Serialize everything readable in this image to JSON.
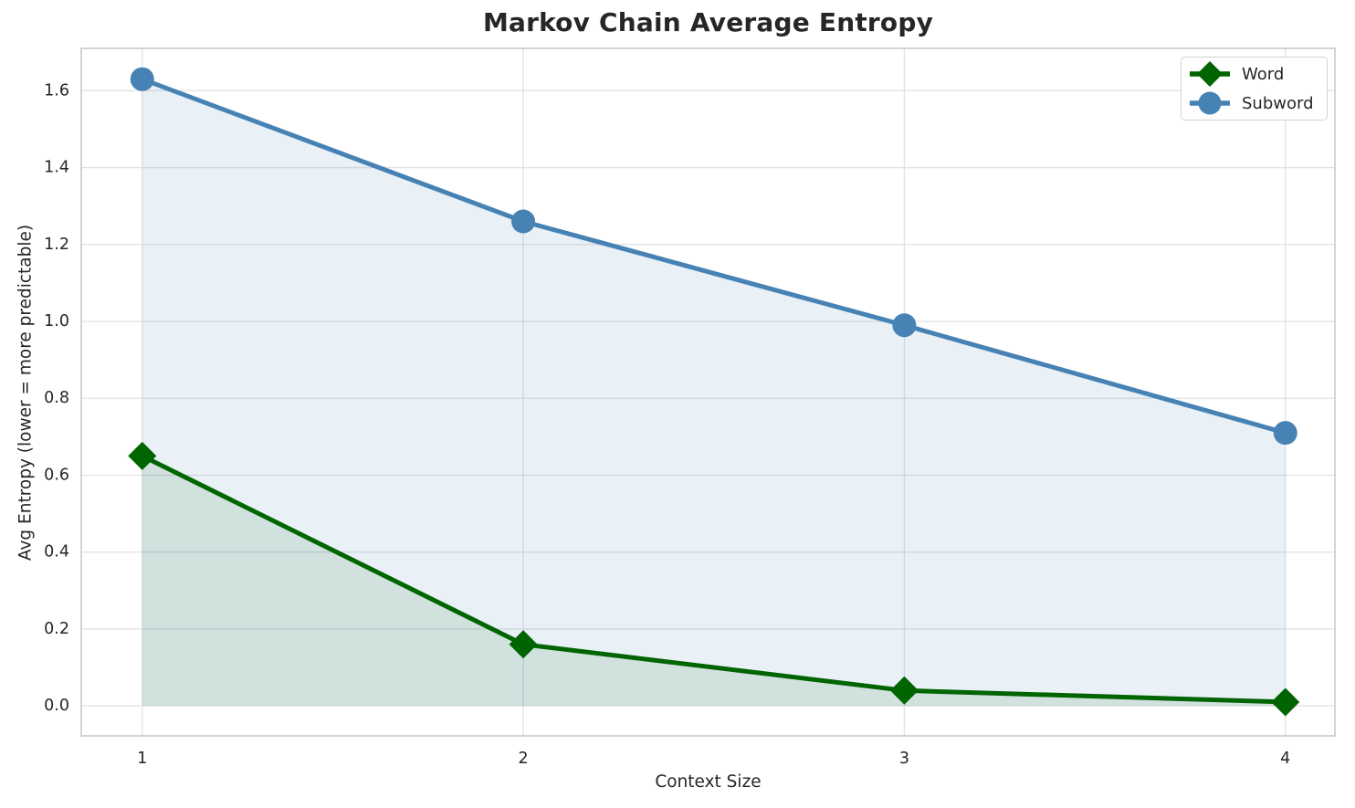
{
  "chart_data": {
    "type": "line",
    "title": "Markov Chain Average Entropy",
    "xlabel": "Context Size",
    "ylabel": "Avg Entropy (lower = more predictable)",
    "x": [
      1,
      2,
      3,
      4
    ],
    "series": [
      {
        "name": "Word",
        "values": [
          0.65,
          0.16,
          0.04,
          0.01
        ],
        "color": "#006400",
        "marker": "diamond",
        "fill_alpha": 0.1
      },
      {
        "name": "Subword",
        "values": [
          1.63,
          1.26,
          0.99,
          0.71
        ],
        "color": "#4682b4",
        "marker": "circle",
        "fill_alpha": 0.12
      }
    ],
    "x_tick_labels": [
      "1",
      "2",
      "3",
      "4"
    ],
    "y_ticks": [
      0.0,
      0.2,
      0.4,
      0.6,
      0.8,
      1.0,
      1.2,
      1.4,
      1.6
    ],
    "y_tick_labels": [
      "0.0",
      "0.2",
      "0.4",
      "0.6",
      "0.8",
      "1.0",
      "1.2",
      "1.4",
      "1.6"
    ],
    "xlim": [
      0.84,
      4.13
    ],
    "ylim": [
      -0.078,
      1.71
    ],
    "grid": true,
    "fill_to_zero": true,
    "legend_position": "upper right",
    "colors": {
      "grid": "#e2e2e6",
      "spine": "#c9c9c9",
      "text": "#262626",
      "background": "#ffffff"
    }
  }
}
